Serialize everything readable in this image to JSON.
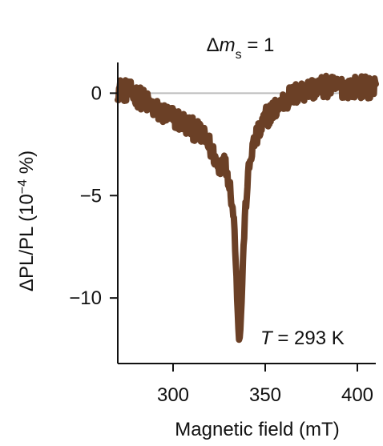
{
  "chart_data": {
    "type": "line",
    "title": "Δm_s = 1",
    "title_parts": {
      "prefix": "Δ",
      "symbol": "m",
      "subscript": "s",
      "suffix": " = 1"
    },
    "xlabel": "Magnetic field (mT)",
    "ylabel": "ΔPL/PL (10−4 %)",
    "ylabel_parts": {
      "main": "ΔPL/PL (10",
      "exponent": "−4",
      "tail": " %)"
    },
    "annotation": "T = 293 K",
    "annotation_parts": {
      "symbol": "T",
      "rest": " = 293 K"
    },
    "xlim": [
      270,
      410
    ],
    "ylim": [
      -13.2,
      1.5
    ],
    "xticks": [
      300,
      350,
      400
    ],
    "xtick_labels": [
      "300",
      "350",
      "400"
    ],
    "yticks": [
      0,
      -5,
      -10
    ],
    "ytick_labels": [
      "0",
      "−5",
      "−10"
    ],
    "reference_line_y": 0,
    "grid": false,
    "legend": "none",
    "colors": {
      "series": "#6b4026",
      "reference_line": "#bdbdbd",
      "axes": "#111111"
    },
    "series": [
      {
        "values_x": [
          270,
          275,
          280,
          285,
          290,
          295,
          300,
          305,
          310,
          315,
          320,
          323,
          325,
          327,
          329,
          331,
          333,
          334,
          335,
          336,
          337,
          338,
          339,
          341,
          343,
          345,
          348,
          350,
          355,
          360,
          365,
          370,
          375,
          380,
          385,
          390,
          395,
          400,
          405,
          410
        ],
        "values_y": [
          0.2,
          0.1,
          -0.1,
          -0.4,
          -0.8,
          -1.0,
          -1.2,
          -1.4,
          -1.7,
          -2.0,
          -2.6,
          -3.2,
          -3.8,
          -3.2,
          -3.7,
          -4.6,
          -6.2,
          -8.0,
          -10.5,
          -12.3,
          -10.6,
          -8.1,
          -6.0,
          -3.8,
          -2.7,
          -2.2,
          -1.7,
          -1.2,
          -0.8,
          -0.4,
          -0.1,
          0.1,
          0.2,
          0.3,
          0.3,
          0.3,
          0.3,
          0.3,
          0.3,
          0.3
        ],
        "noise_band": [
          0.55,
          0.55,
          0.55,
          0.55,
          0.55,
          0.55,
          0.55,
          0.55,
          0.55,
          0.55,
          0.55,
          0.5,
          0.45,
          0.45,
          0.45,
          0.4,
          0.35,
          0.3,
          0.25,
          0.2,
          0.25,
          0.3,
          0.35,
          0.4,
          0.45,
          0.5,
          0.55,
          0.55,
          0.55,
          0.55,
          0.55,
          0.55,
          0.55,
          0.55,
          0.55,
          0.55,
          0.55,
          0.55,
          0.55,
          0.55
        ]
      }
    ]
  }
}
